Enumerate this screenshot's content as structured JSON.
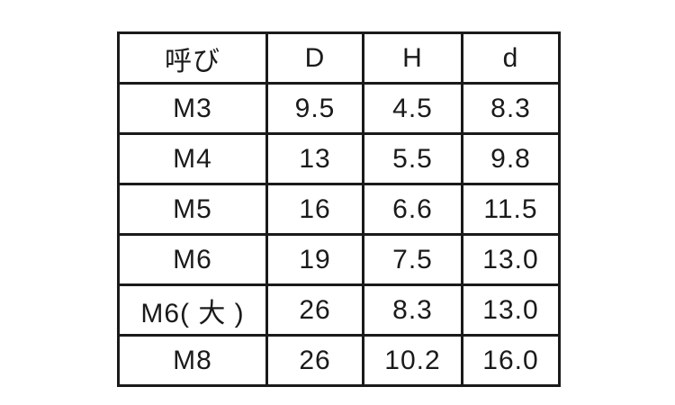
{
  "chart_data": {
    "type": "table",
    "title": "",
    "columns": [
      "呼び",
      "D",
      "H",
      "d"
    ],
    "rows": [
      [
        "M3",
        "9.5",
        "4.5",
        "8.3"
      ],
      [
        "M4",
        "13",
        "5.5",
        "9.8"
      ],
      [
        "M5",
        "16",
        "6.6",
        "11.5"
      ],
      [
        "M6",
        "19",
        "7.5",
        "13.0"
      ],
      [
        "M6( 大 )",
        "26",
        "8.3",
        "13.0"
      ],
      [
        "M8",
        "26",
        "10.2",
        "16.0"
      ]
    ]
  },
  "colors": {
    "border": "#1a1a1a",
    "text": "#1a1a1a",
    "background": "#ffffff"
  }
}
